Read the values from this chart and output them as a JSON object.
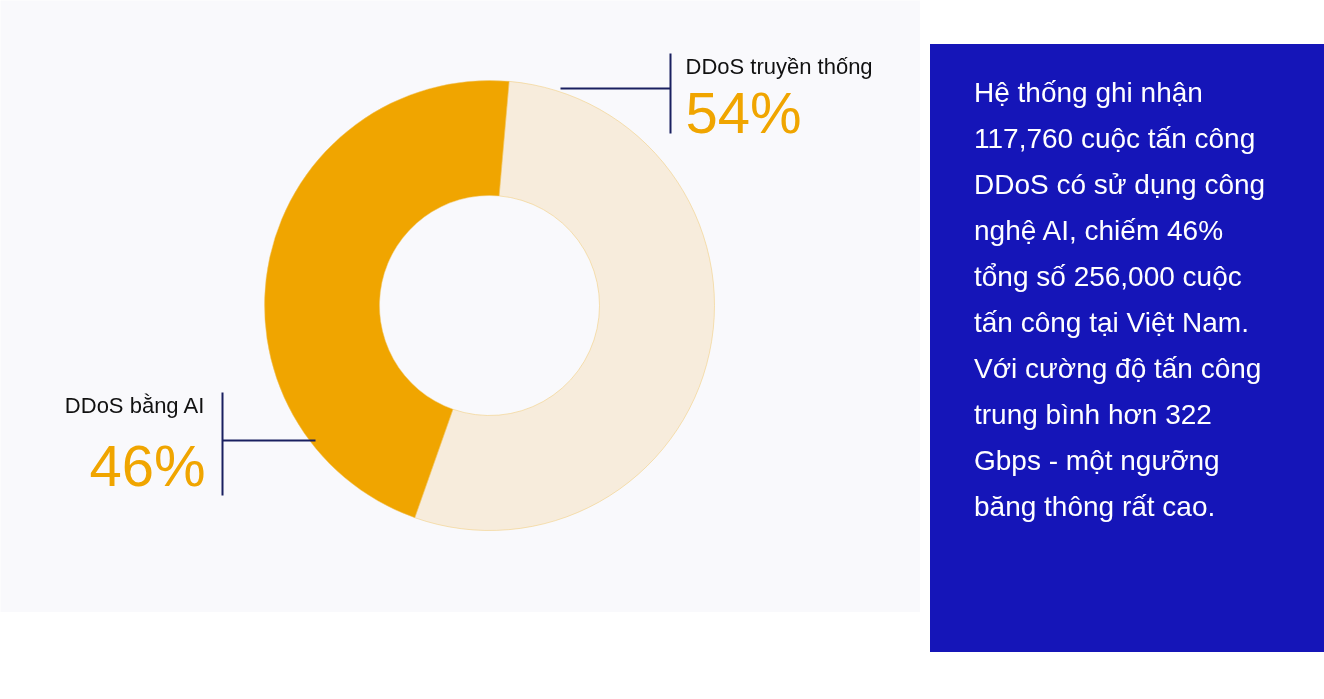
{
  "chart_data": {
    "type": "donut",
    "categories": [
      "DDoS truyền thống",
      "DDoS bằng AI"
    ],
    "values": [
      54,
      46
    ],
    "colors": [
      "#f7ecdc",
      "#f0a500"
    ],
    "value_labels": [
      "54%",
      "46%"
    ],
    "annotations": [
      "Hệ thống ghi nhận 117,760 cuộc tấn công DDoS có sử dụng công nghệ AI, chiếm 46% tổng số 256,000 cuộc tấn công tại Việt Nam. Với cường độ tấn công trung bình hơn 322 Gbps - một ngưỡng băng thông rất cao."
    ]
  }
}
